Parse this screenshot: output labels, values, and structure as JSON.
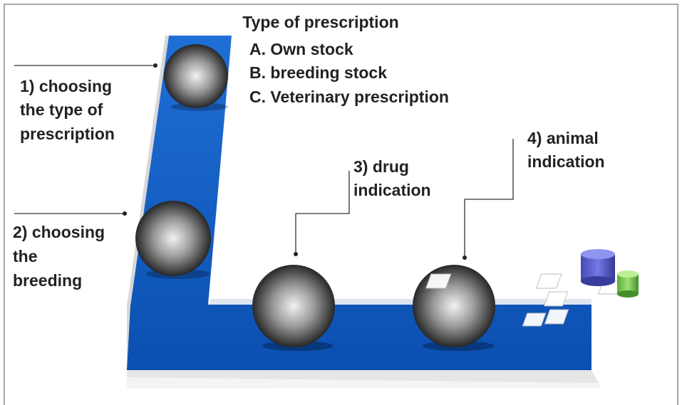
{
  "header": {
    "title": "Type of prescription",
    "options": [
      "A. Own stock",
      "B. breeding stock",
      "C. Veterinary prescription"
    ]
  },
  "steps": [
    {
      "label_lines": [
        "1) choosing",
        "the type of",
        "prescription"
      ]
    },
    {
      "label_lines": [
        "2) choosing",
        "the",
        "breeding"
      ]
    },
    {
      "label_lines": [
        "3) drug",
        "indication"
      ]
    },
    {
      "label_lines": [
        "4) animal",
        "indication"
      ]
    }
  ]
}
